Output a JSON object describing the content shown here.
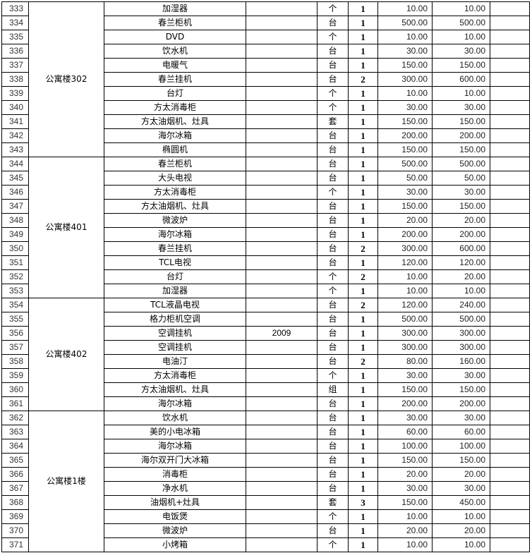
{
  "groups": [
    {
      "name": "公寓楼302",
      "rows": [
        [
          "333",
          "加湿器",
          "",
          "个",
          "1",
          "10.00",
          "10.00"
        ],
        [
          "334",
          "春兰柜机",
          "",
          "台",
          "1",
          "500.00",
          "500.00"
        ],
        [
          "335",
          "DVD",
          "",
          "个",
          "1",
          "10.00",
          "10.00"
        ],
        [
          "336",
          "饮水机",
          "",
          "台",
          "1",
          "30.00",
          "30.00"
        ],
        [
          "337",
          "电暖气",
          "",
          "台",
          "1",
          "150.00",
          "150.00"
        ],
        [
          "338",
          "春兰挂机",
          "",
          "台",
          "2",
          "300.00",
          "600.00"
        ],
        [
          "339",
          "台灯",
          "",
          "个",
          "1",
          "10.00",
          "10.00"
        ],
        [
          "340",
          "方太消毒柜",
          "",
          "个",
          "1",
          "30.00",
          "30.00"
        ],
        [
          "341",
          "方太油烟机、灶具",
          "",
          "套",
          "1",
          "150.00",
          "150.00"
        ],
        [
          "342",
          "海尔冰箱",
          "",
          "台",
          "1",
          "200.00",
          "200.00"
        ],
        [
          "343",
          "椭圆机",
          "",
          "台",
          "1",
          "150.00",
          "150.00"
        ]
      ]
    },
    {
      "name": "公寓楼401",
      "rows": [
        [
          "344",
          "春兰柜机",
          "",
          "台",
          "1",
          "500.00",
          "500.00"
        ],
        [
          "345",
          "大头电视",
          "",
          "台",
          "1",
          "50.00",
          "50.00"
        ],
        [
          "346",
          "方太消毒柜",
          "",
          "个",
          "1",
          "30.00",
          "30.00"
        ],
        [
          "347",
          "方太油烟机、灶具",
          "",
          "台",
          "1",
          "150.00",
          "150.00"
        ],
        [
          "348",
          "微波炉",
          "",
          "台",
          "1",
          "20.00",
          "20.00"
        ],
        [
          "349",
          "海尔冰箱",
          "",
          "台",
          "1",
          "200.00",
          "200.00"
        ],
        [
          "350",
          "春兰挂机",
          "",
          "台",
          "2",
          "300.00",
          "600.00"
        ],
        [
          "351",
          "TCL电视",
          "",
          "台",
          "1",
          "120.00",
          "120.00"
        ],
        [
          "352",
          "台灯",
          "",
          "个",
          "2",
          "10.00",
          "20.00"
        ],
        [
          "353",
          "加湿器",
          "",
          "个",
          "1",
          "10.00",
          "10.00"
        ]
      ]
    },
    {
      "name": "公寓楼402",
      "rows": [
        [
          "354",
          "TCL液晶电视",
          "",
          "台",
          "2",
          "120.00",
          "240.00"
        ],
        [
          "355",
          "格力柜机空调",
          "",
          "台",
          "1",
          "500.00",
          "500.00"
        ],
        [
          "356",
          "空调挂机",
          "2009",
          "台",
          "1",
          "300.00",
          "300.00"
        ],
        [
          "357",
          "空调挂机",
          "",
          "台",
          "1",
          "300.00",
          "300.00"
        ],
        [
          "358",
          "电油汀",
          "",
          "台",
          "2",
          "80.00",
          "160.00"
        ],
        [
          "359",
          "方太消毒柜",
          "",
          "个",
          "1",
          "30.00",
          "30.00"
        ],
        [
          "360",
          "方太油烟机、灶具",
          "",
          "组",
          "1",
          "150.00",
          "150.00"
        ],
        [
          "361",
          "海尔冰箱",
          "",
          "台",
          "1",
          "200.00",
          "200.00"
        ]
      ]
    },
    {
      "name": "公寓楼1楼",
      "rows": [
        [
          "362",
          "饮水机",
          "",
          "台",
          "1",
          "30.00",
          "30.00"
        ],
        [
          "363",
          "美的小电冰箱",
          "",
          "台",
          "1",
          "60.00",
          "60.00"
        ],
        [
          "364",
          "海尔冰箱",
          "",
          "台",
          "1",
          "100.00",
          "100.00"
        ],
        [
          "365",
          "海尔双开门大冰箱",
          "",
          "台",
          "1",
          "150.00",
          "150.00"
        ],
        [
          "366",
          "消毒柜",
          "",
          "台",
          "1",
          "20.00",
          "20.00"
        ],
        [
          "367",
          "净水机",
          "",
          "台",
          "1",
          "30.00",
          "30.00"
        ],
        [
          "368",
          "油烟机+灶具",
          "",
          "套",
          "3",
          "150.00",
          "450.00"
        ],
        [
          "369",
          "电饭煲",
          "",
          "个",
          "1",
          "10.00",
          "10.00"
        ],
        [
          "370",
          "微波炉",
          "",
          "台",
          "1",
          "20.00",
          "20.00"
        ],
        [
          "371",
          "小烤箱",
          "",
          "个",
          "1",
          "10.00",
          "10.00"
        ]
      ]
    }
  ]
}
